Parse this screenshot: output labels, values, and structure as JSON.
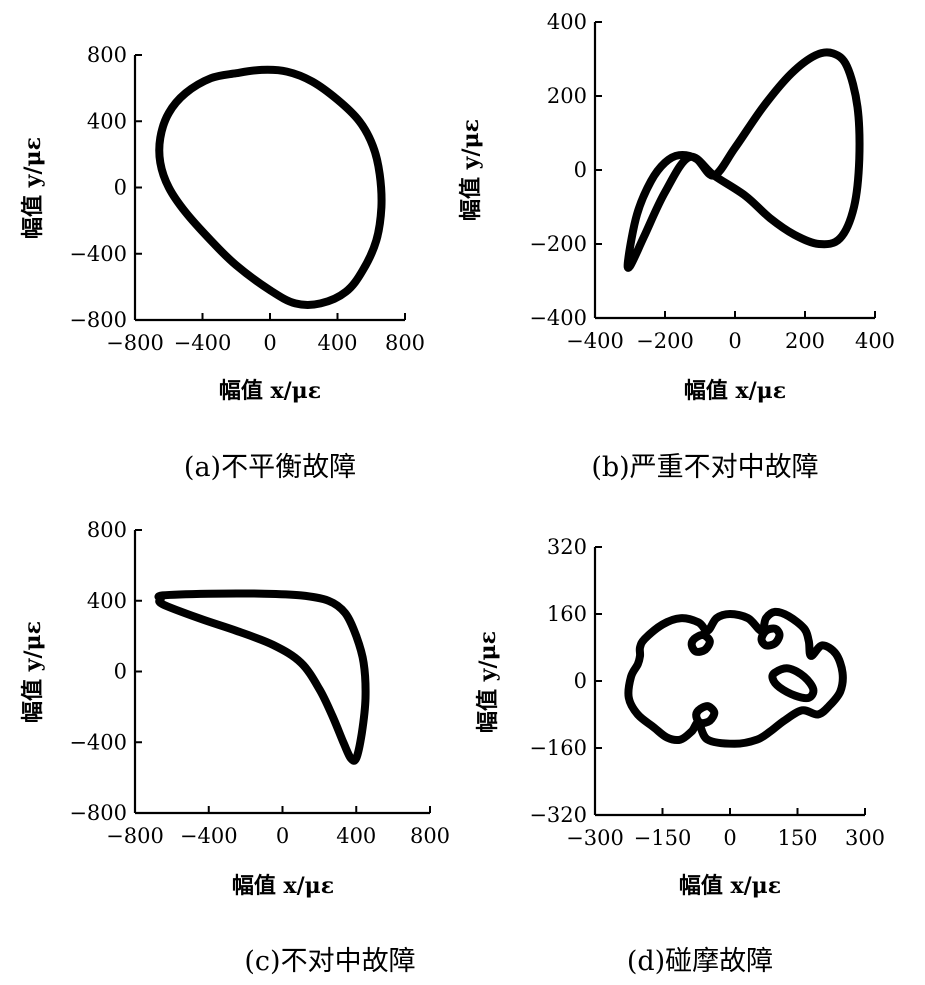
{
  "chart_data": [
    {
      "type": "line",
      "caption": "(a)不平衡故障",
      "xlabel": "幅值 x/με",
      "ylabel": "幅值 y/με",
      "xlim": [
        -800,
        800
      ],
      "ylim": [
        -800,
        800
      ],
      "xticks": [
        -800,
        -400,
        0,
        400,
        800
      ],
      "yticks": [
        -800,
        -400,
        0,
        400,
        800
      ],
      "xtick_labels": [
        "−800",
        "−400",
        "0",
        "400",
        "800"
      ],
      "ytick_labels": [
        "−800",
        "−400",
        "0",
        "400",
        "800"
      ],
      "series": [
        {
          "x": [
            -200,
            -350,
            -500,
            -600,
            -650,
            -650,
            -600,
            -500,
            -350,
            -200,
            0,
            150,
            300,
            450,
            550,
            630,
            660,
            650,
            610,
            530,
            400,
            250,
            100,
            -50,
            -200
          ],
          "y": [
            690,
            660,
            570,
            450,
            300,
            150,
            0,
            -150,
            -320,
            -470,
            -620,
            -700,
            -700,
            -630,
            -500,
            -320,
            -120,
            80,
            250,
            400,
            530,
            640,
            700,
            710,
            690
          ]
        }
      ]
    },
    {
      "type": "line",
      "caption": "(b)严重不对中故障",
      "xlabel": "幅值 x/με",
      "ylabel": "幅值 y/με",
      "xlim": [
        -400,
        400
      ],
      "ylim": [
        -400,
        400
      ],
      "xticks": [
        -400,
        -200,
        0,
        200,
        400
      ],
      "yticks": [
        -400,
        -200,
        0,
        200,
        400
      ],
      "xtick_labels": [
        "−400",
        "−200",
        "0",
        "200",
        "400"
      ],
      "ytick_labels": [
        "−400",
        "−200",
        "0",
        "200",
        "400"
      ],
      "series": [
        {
          "x": [
            -60,
            0,
            80,
            160,
            230,
            280,
            320,
            350,
            355,
            340,
            300,
            240,
            170,
            100,
            30,
            -60,
            -130,
            -200,
            -260,
            -300,
            -305,
            -280,
            -240,
            -200,
            -160,
            -110,
            -60
          ],
          "y": [
            -15,
            60,
            170,
            260,
            310,
            315,
            280,
            170,
            30,
            -100,
            -185,
            -200,
            -175,
            -130,
            -70,
            -15,
            35,
            -60,
            -180,
            -260,
            -240,
            -120,
            -30,
            20,
            40,
            30,
            -15
          ]
        }
      ]
    },
    {
      "type": "line",
      "caption": "(c)不对中故障",
      "xlabel": "幅值 x/με",
      "ylabel": "幅值 y/με",
      "xlim": [
        -800,
        800
      ],
      "ylim": [
        -800,
        800
      ],
      "xticks": [
        -800,
        -400,
        0,
        400,
        800
      ],
      "yticks": [
        -800,
        -400,
        0,
        400,
        800
      ],
      "xtick_labels": [
        "−800",
        "−400",
        "0",
        "400",
        "800"
      ],
      "ytick_labels": [
        "−800",
        "−400",
        "0",
        "400",
        "800"
      ],
      "series": [
        {
          "x": [
            -650,
            -400,
            -100,
            100,
            250,
            340,
            400,
            440,
            450,
            430,
            400,
            370,
            330,
            270,
            200,
            100,
            -50,
            -250,
            -450,
            -650,
            -660,
            -650
          ],
          "y": [
            430,
            440,
            440,
            430,
            400,
            330,
            200,
            50,
            -150,
            -350,
            -490,
            -490,
            -400,
            -250,
            -100,
            50,
            150,
            230,
            300,
            380,
            410,
            430
          ]
        }
      ]
    },
    {
      "type": "line",
      "caption": "(d)碰摩故障",
      "xlabel": "幅值 x/με",
      "ylabel": "幅值 y/με",
      "xlim": [
        -300,
        300
      ],
      "ylim": [
        -320,
        320
      ],
      "xticks": [
        -300,
        -150,
        0,
        150,
        300
      ],
      "yticks": [
        -320,
        -160,
        0,
        160,
        320
      ],
      "xtick_labels": [
        "−300",
        "−150",
        "0",
        "150",
        "300"
      ],
      "ytick_labels": [
        "−320",
        "−160",
        "0",
        "160",
        "320"
      ],
      "series": [
        {
          "x": [
            -190,
            -150,
            -110,
            -70,
            -50,
            -30,
            0,
            40,
            70,
            80,
            100,
            130,
            165,
            175,
            180,
            205,
            235,
            250,
            245,
            220,
            195,
            160,
            120,
            90,
            60,
            10,
            -50,
            -70,
            -85,
            -110,
            -140,
            -170,
            -205,
            -225,
            -220,
            -205,
            -200,
            -200,
            -190
          ],
          "y": [
            100,
            135,
            150,
            140,
            120,
            150,
            160,
            150,
            120,
            150,
            165,
            155,
            125,
            95,
            60,
            85,
            65,
            20,
            -25,
            -60,
            -80,
            -70,
            -95,
            -120,
            -140,
            -150,
            -140,
            -100,
            -120,
            -140,
            -135,
            -110,
            -80,
            -40,
            10,
            40,
            60,
            80,
            100
          ]
        },
        {
          "x": [
            -80,
            -60,
            -45,
            -55,
            -75,
            -85,
            -80
          ],
          "y": [
            100,
            110,
            95,
            75,
            70,
            85,
            100
          ]
        },
        {
          "x": [
            80,
            100,
            110,
            100,
            80,
            70,
            80
          ],
          "y": [
            120,
            125,
            110,
            90,
            85,
            100,
            120
          ]
        },
        {
          "x": [
            100,
            130,
            165,
            185,
            175,
            145,
            110,
            95,
            100
          ],
          "y": [
            20,
            30,
            10,
            -20,
            -40,
            -35,
            -15,
            5,
            20
          ]
        },
        {
          "x": [
            -70,
            -50,
            -35,
            -45,
            -65,
            -75,
            -70
          ],
          "y": [
            -70,
            -60,
            -75,
            -95,
            -100,
            -85,
            -70
          ]
        }
      ]
    }
  ]
}
